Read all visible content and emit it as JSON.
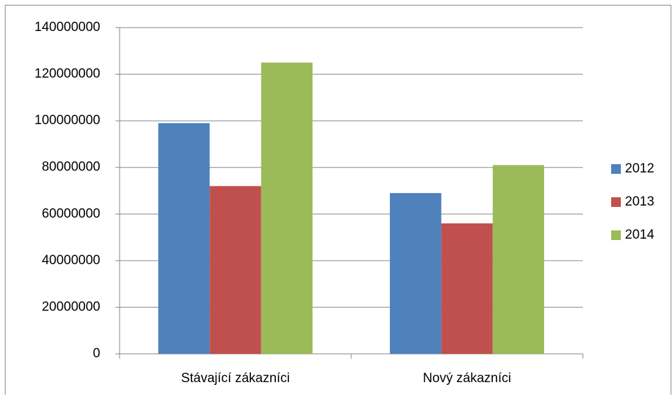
{
  "chart_data": {
    "type": "bar",
    "categories": [
      "Stávající zákazníci",
      "Nový zákazníci"
    ],
    "series": [
      {
        "name": "2012",
        "color": "#4f81bd",
        "values": [
          99000000,
          69000000
        ]
      },
      {
        "name": "2013",
        "color": "#c0504d",
        "values": [
          72000000,
          56000000
        ]
      },
      {
        "name": "2014",
        "color": "#9bbb59",
        "values": [
          125000000,
          81000000
        ]
      }
    ],
    "ylim": [
      0,
      140000000
    ],
    "yticks": [
      0,
      20000000,
      40000000,
      60000000,
      80000000,
      100000000,
      120000000,
      140000000
    ],
    "grid": true,
    "legend": "right"
  }
}
